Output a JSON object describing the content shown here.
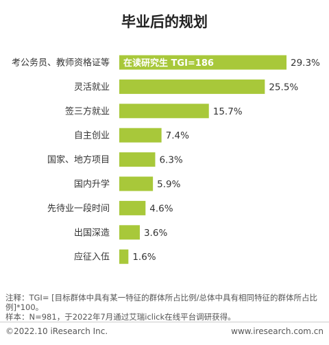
{
  "chart_data": {
    "type": "bar",
    "orientation": "horizontal",
    "title": "毕业后的规划",
    "categories": [
      "考公务员、教师资格证等",
      "灵活就业",
      "签三方就业",
      "自主创业",
      "国家、地方项目",
      "国内升学",
      "先待业一段时间",
      "出国深造",
      "应征入伍"
    ],
    "values": [
      29.3,
      25.5,
      15.7,
      7.4,
      6.3,
      5.9,
      4.6,
      3.6,
      1.6
    ],
    "value_labels": [
      "29.3%",
      "25.5%",
      "15.7%",
      "7.4%",
      "6.3%",
      "5.9%",
      "4.6%",
      "3.6%",
      "1.6%"
    ],
    "annotation": "在读研究生 TGI=186",
    "bar_color": "#a8c83a",
    "grid": false,
    "legend": "none"
  },
  "notes": {
    "line1": "注释：TGI= [目标群体中具有某一特征的群体所占比例/总体中具有相同特征的群体所占比例]*100。",
    "line2": "样本：N=981，于2022年7月通过艾瑞iclick在线平台调研获得。"
  },
  "footer": {
    "left": "©2022.10 iResearch Inc.",
    "right": "www.iresearch.com.cn"
  }
}
